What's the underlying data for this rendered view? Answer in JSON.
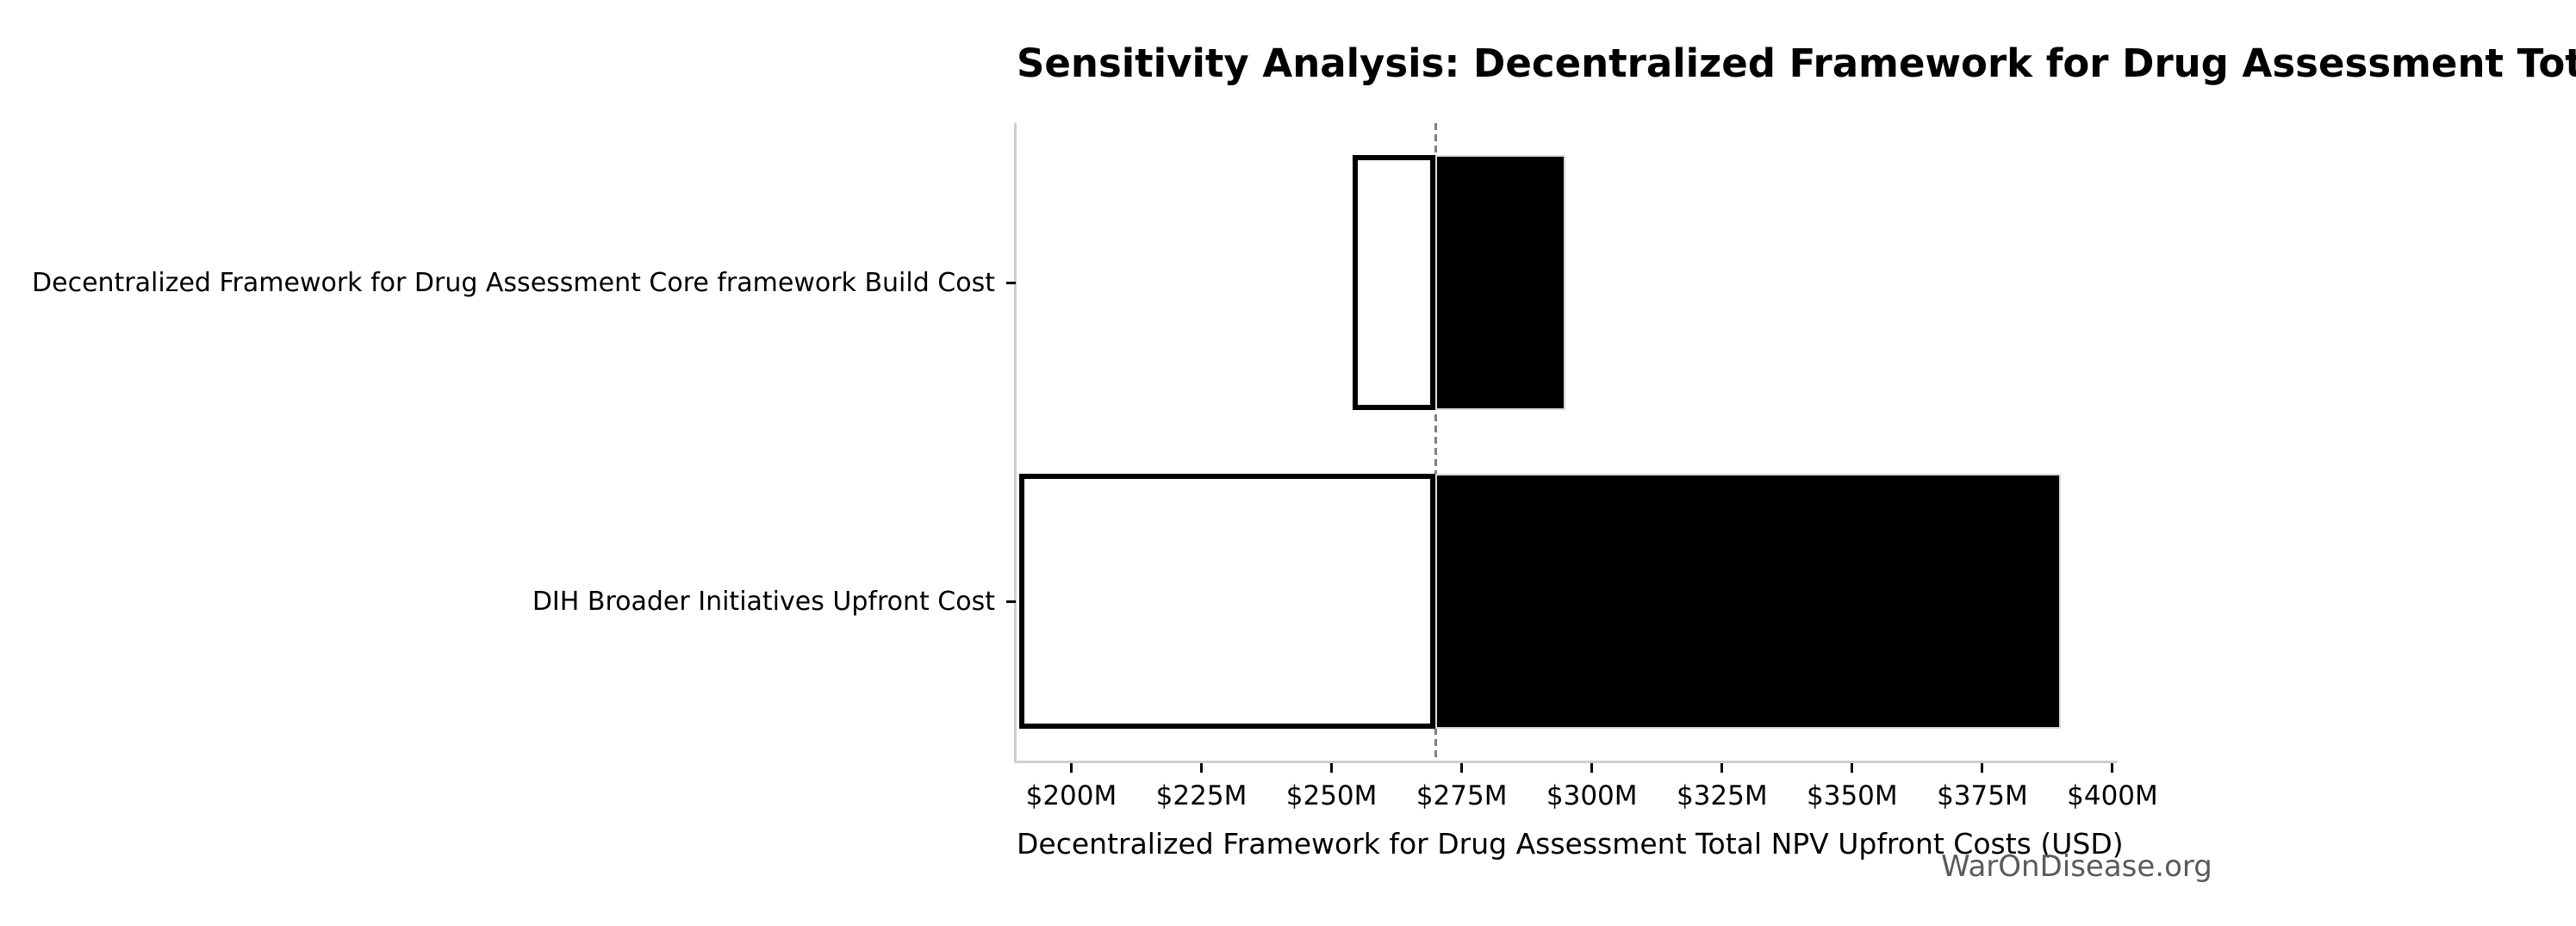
{
  "watermark": "WarOnDisease.org",
  "chart_data": {
    "type": "bar",
    "subtype": "tornado-sensitivity",
    "orientation": "horizontal",
    "title": "Sensitivity Analysis: Decentralized Framework for Drug Assessment Total NPV Upfront Costs",
    "xlabel": "Decentralized Framework for Drug Assessment Total NPV Upfront Costs (USD)",
    "ylabel": "",
    "categories": [
      "Decentralized Framework for Drug Assessment Core framework Build Cost",
      "DIH Broader Initiatives Upfront Cost"
    ],
    "baseline_value_musd": 270,
    "series": [
      {
        "name": "low-case total (white segment)",
        "values": [
          254,
          190
        ]
      },
      {
        "name": "high-case total (black segment)",
        "values": [
          295,
          390
        ]
      }
    ],
    "units": "USD millions",
    "xlim": [
      189.5,
      400.5
    ],
    "x_ticks": [
      200,
      225,
      250,
      275,
      300,
      325,
      350,
      375,
      400
    ],
    "x_tick_labels": [
      "$200M",
      "$225M",
      "$250M",
      "$275M",
      "$300M",
      "$325M",
      "$350M",
      "$375M",
      "$400M"
    ],
    "grid": false,
    "legend": "none",
    "colors": {
      "low_fill": "#ffffff",
      "low_edge": "#000000",
      "high_fill": "#000000",
      "high_edge": "#d9d9d9",
      "baseline_line": "#7f7f7f",
      "spine": "#cfcfcf",
      "tick": "#000000",
      "watermark_text": "#5a5a5a",
      "background": "#ffffff"
    }
  }
}
